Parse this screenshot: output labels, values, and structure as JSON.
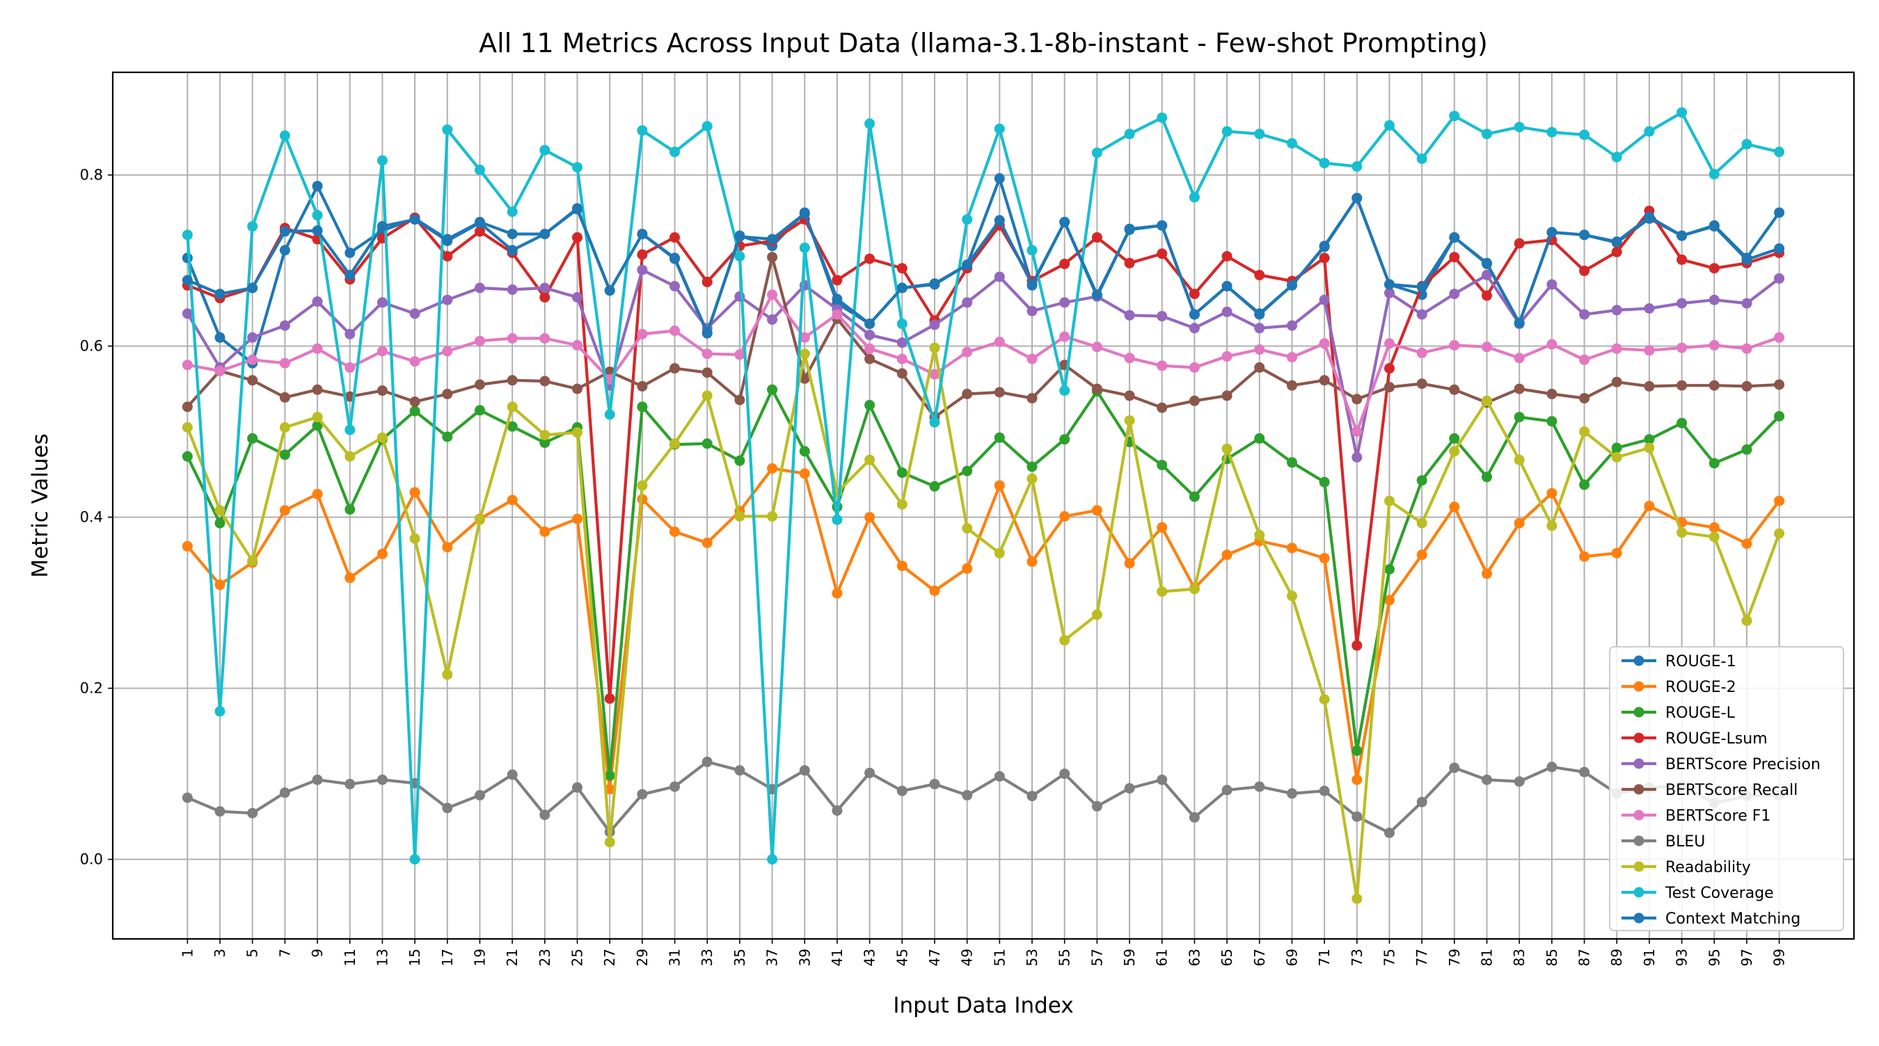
{
  "chart_data": {
    "type": "line",
    "title": "All 11 Metrics Across Input Data (llama-3.1-8b-instant - Few-shot Prompting)",
    "xlabel": "Input Data Index",
    "ylabel": "Metric Values",
    "x": [
      1,
      3,
      5,
      7,
      9,
      11,
      13,
      15,
      17,
      19,
      21,
      23,
      25,
      27,
      29,
      31,
      33,
      35,
      37,
      39,
      41,
      43,
      45,
      47,
      49,
      51,
      53,
      55,
      57,
      59,
      61,
      63,
      65,
      67,
      69,
      71,
      73,
      75,
      77,
      79,
      81,
      83,
      85,
      87,
      89,
      91,
      93,
      95,
      97,
      99
    ],
    "xticks": [
      "1",
      "3",
      "5",
      "7",
      "9",
      "11",
      "13",
      "15",
      "17",
      "19",
      "21",
      "23",
      "25",
      "27",
      "29",
      "31",
      "33",
      "35",
      "37",
      "39",
      "41",
      "43",
      "45",
      "47",
      "49",
      "51",
      "53",
      "55",
      "57",
      "59",
      "61",
      "63",
      "65",
      "67",
      "69",
      "71",
      "73",
      "75",
      "77",
      "79",
      "81",
      "83",
      "85",
      "87",
      "89",
      "91",
      "93",
      "95",
      "97",
      "99"
    ],
    "yticks": [
      "0.0",
      "0.2",
      "0.4",
      "0.6",
      "0.8"
    ],
    "ytick_values": [
      0,
      0.2,
      0.4,
      0.6,
      0.8
    ],
    "xlim": [
      -3.6,
      103.6
    ],
    "ylim": [
      -0.093,
      0.92
    ],
    "grid": true,
    "legend_position": "lower right",
    "series": [
      {
        "name": "ROUGE-1",
        "color": "#1f77b4",
        "values": [
          0.703,
          0.61,
          0.58,
          0.712,
          0.787,
          0.709,
          0.735,
          0.749,
          0.725,
          0.745,
          0.731,
          0.731,
          0.761,
          0.665,
          0.731,
          0.702,
          0.615,
          0.729,
          0.717,
          0.756,
          0.65,
          0.626,
          0.668,
          0.672,
          0.695,
          0.796,
          0.671,
          0.745,
          0.658,
          0.737,
          0.741,
          0.637,
          0.67,
          0.638,
          0.671,
          0.717,
          0.773,
          0.672,
          0.66,
          0.727,
          0.697,
          0.627,
          0.733,
          0.73,
          0.721,
          0.749,
          0.729,
          0.741,
          0.703,
          0.756
        ]
      },
      {
        "name": "ROUGE-2",
        "color": "#ff7f0e",
        "values": [
          0.366,
          0.321,
          0.347,
          0.408,
          0.427,
          0.329,
          0.357,
          0.429,
          0.365,
          0.398,
          0.42,
          0.383,
          0.398,
          0.082,
          0.421,
          0.383,
          0.37,
          0.407,
          0.457,
          0.451,
          0.311,
          0.4,
          0.343,
          0.314,
          0.34,
          0.437,
          0.348,
          0.401,
          0.408,
          0.346,
          0.388,
          0.317,
          0.356,
          0.372,
          0.364,
          0.352,
          0.093,
          0.303,
          0.356,
          0.412,
          0.334,
          0.393,
          0.428,
          0.354,
          0.358,
          0.413,
          0.394,
          0.388,
          0.369,
          0.419
        ]
      },
      {
        "name": "ROUGE-L",
        "color": "#2ca02c",
        "values": [
          0.471,
          0.393,
          0.492,
          0.473,
          0.507,
          0.409,
          0.491,
          0.524,
          0.494,
          0.525,
          0.506,
          0.487,
          0.505,
          0.098,
          0.529,
          0.485,
          0.486,
          0.466,
          0.549,
          0.477,
          0.412,
          0.531,
          0.452,
          0.436,
          0.454,
          0.493,
          0.459,
          0.491,
          0.547,
          0.488,
          0.461,
          0.424,
          0.468,
          0.492,
          0.464,
          0.441,
          0.127,
          0.339,
          0.443,
          0.492,
          0.447,
          0.517,
          0.512,
          0.438,
          0.481,
          0.491,
          0.51,
          0.463,
          0.479,
          0.518
        ]
      },
      {
        "name": "ROUGE-Lsum",
        "color": "#d62728",
        "values": [
          0.671,
          0.656,
          0.668,
          0.738,
          0.725,
          0.678,
          0.726,
          0.75,
          0.705,
          0.734,
          0.709,
          0.657,
          0.727,
          0.188,
          0.707,
          0.727,
          0.675,
          0.717,
          0.723,
          0.748,
          0.677,
          0.702,
          0.691,
          0.63,
          0.691,
          0.741,
          0.676,
          0.696,
          0.727,
          0.697,
          0.708,
          0.661,
          0.705,
          0.683,
          0.676,
          0.703,
          0.25,
          0.574,
          0.67,
          0.704,
          0.659,
          0.72,
          0.724,
          0.688,
          0.71,
          0.758,
          0.701,
          0.691,
          0.697,
          0.709
        ]
      },
      {
        "name": "BERTScore Precision",
        "color": "#9467bd",
        "values": [
          0.638,
          0.575,
          0.61,
          0.624,
          0.652,
          0.614,
          0.651,
          0.638,
          0.654,
          0.668,
          0.666,
          0.668,
          0.657,
          0.554,
          0.689,
          0.67,
          0.621,
          0.658,
          0.631,
          0.671,
          0.643,
          0.613,
          0.604,
          0.625,
          0.651,
          0.681,
          0.641,
          0.651,
          0.658,
          0.636,
          0.635,
          0.621,
          0.64,
          0.621,
          0.624,
          0.654,
          0.47,
          0.662,
          0.637,
          0.661,
          0.683,
          0.626,
          0.672,
          0.637,
          0.642,
          0.644,
          0.65,
          0.654,
          0.65,
          0.679
        ]
      },
      {
        "name": "BERTScore Recall",
        "color": "#8c564b",
        "values": [
          0.529,
          0.571,
          0.56,
          0.54,
          0.549,
          0.541,
          0.548,
          0.535,
          0.544,
          0.555,
          0.56,
          0.559,
          0.55,
          0.57,
          0.553,
          0.574,
          0.569,
          0.537,
          0.704,
          0.562,
          0.632,
          0.585,
          0.568,
          0.517,
          0.544,
          0.546,
          0.539,
          0.578,
          0.55,
          0.542,
          0.528,
          0.536,
          0.542,
          0.575,
          0.554,
          0.56,
          0.538,
          0.552,
          0.556,
          0.549,
          0.534,
          0.55,
          0.544,
          0.539,
          0.558,
          0.553,
          0.554,
          0.554,
          0.553,
          0.555
        ]
      },
      {
        "name": "BERTScore F1",
        "color": "#e377c2",
        "values": [
          0.578,
          0.571,
          0.584,
          0.58,
          0.597,
          0.575,
          0.594,
          0.582,
          0.594,
          0.606,
          0.609,
          0.609,
          0.601,
          0.561,
          0.614,
          0.618,
          0.591,
          0.59,
          0.66,
          0.61,
          0.637,
          0.597,
          0.585,
          0.567,
          0.593,
          0.605,
          0.585,
          0.611,
          0.599,
          0.586,
          0.577,
          0.575,
          0.588,
          0.596,
          0.587,
          0.603,
          0.5,
          0.603,
          0.592,
          0.601,
          0.599,
          0.586,
          0.602,
          0.584,
          0.597,
          0.595,
          0.598,
          0.601,
          0.597,
          0.61
        ]
      },
      {
        "name": "BLEU",
        "color": "#7f7f7f",
        "values": [
          0.072,
          0.056,
          0.054,
          0.078,
          0.093,
          0.088,
          0.093,
          0.089,
          0.06,
          0.075,
          0.099,
          0.052,
          0.084,
          0.032,
          0.076,
          0.085,
          0.114,
          0.104,
          0.082,
          0.104,
          0.057,
          0.101,
          0.08,
          0.088,
          0.075,
          0.097,
          0.074,
          0.1,
          0.062,
          0.083,
          0.093,
          0.049,
          0.081,
          0.085,
          0.077,
          0.08,
          0.05,
          0.031,
          0.067,
          0.107,
          0.093,
          0.091,
          0.108,
          0.102,
          0.077,
          0.084,
          0.086,
          0.066,
          0.074,
          0.075
        ]
      },
      {
        "name": "Readability",
        "color": "#bcbd22",
        "values": [
          0.505,
          0.408,
          0.349,
          0.505,
          0.517,
          0.471,
          0.493,
          0.375,
          0.216,
          0.397,
          0.529,
          0.496,
          0.499,
          0.02,
          0.437,
          0.486,
          0.542,
          0.401,
          0.401,
          0.591,
          0.429,
          0.467,
          0.415,
          0.598,
          0.387,
          0.358,
          0.445,
          0.256,
          0.286,
          0.513,
          0.313,
          0.316,
          0.48,
          0.379,
          0.308,
          0.187,
          -0.046,
          0.419,
          0.393,
          0.477,
          0.536,
          0.467,
          0.39,
          0.5,
          0.47,
          0.481,
          0.382,
          0.377,
          0.279,
          0.381
        ]
      },
      {
        "name": "Test Coverage",
        "color": "#17becf",
        "values": [
          0.73,
          0.173,
          0.74,
          0.846,
          0.753,
          0.502,
          0.817,
          0.0,
          0.853,
          0.806,
          0.757,
          0.829,
          0.809,
          0.52,
          0.852,
          0.827,
          0.857,
          0.705,
          0.0,
          0.715,
          0.397,
          0.86,
          0.626,
          0.511,
          0.748,
          0.854,
          0.712,
          0.548,
          0.826,
          0.848,
          0.867,
          0.774,
          0.851,
          0.848,
          0.837,
          0.814,
          0.81,
          0.858,
          0.819,
          0.869,
          0.848,
          0.856,
          0.85,
          0.847,
          0.821,
          0.851,
          0.873,
          0.801,
          0.836,
          0.827
        ]
      },
      {
        "name": "Context Matching",
        "color": "#1f77b4",
        "values": [
          0.677,
          0.661,
          0.668,
          0.734,
          0.735,
          0.683,
          0.74,
          0.748,
          0.723,
          0.744,
          0.712,
          0.731,
          0.76,
          0.665,
          0.731,
          0.703,
          0.616,
          0.728,
          0.725,
          0.755,
          0.655,
          0.626,
          0.668,
          0.673,
          0.695,
          0.747,
          0.672,
          0.745,
          0.66,
          0.736,
          0.741,
          0.637,
          0.67,
          0.637,
          0.671,
          0.716,
          0.773,
          0.672,
          0.669,
          0.727,
          0.696,
          0.627,
          0.733,
          0.73,
          0.722,
          0.751,
          0.729,
          0.74,
          0.701,
          0.714
        ]
      }
    ]
  }
}
